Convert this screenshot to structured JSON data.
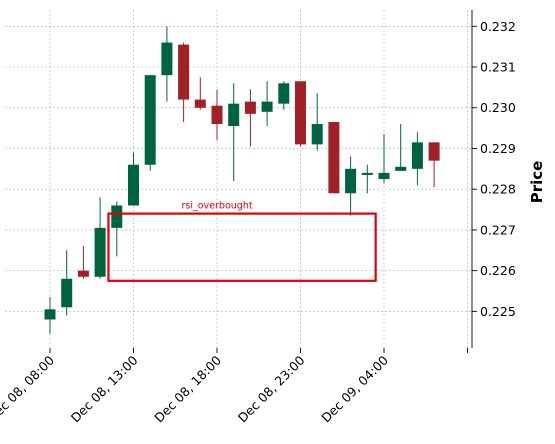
{
  "chart_data": {
    "type": "candlestick",
    "ylabel": "Price",
    "ylim": [
      0.2241,
      0.2324
    ],
    "y_ticks": [
      "0.225",
      "0.226",
      "0.227",
      "0.228",
      "0.229",
      "0.230",
      "0.231",
      "0.232"
    ],
    "x_ticks": [
      "Dec 08, 08:00",
      "Dec 08, 13:00",
      "Dec 08, 18:00",
      "Dec 08, 23:00",
      "Dec 09, 04:00"
    ],
    "grid": true,
    "colors": {
      "up": "#006340",
      "down": "#a02128",
      "annotation": "#e0000a",
      "grid": "#b0b0b0"
    },
    "candles": [
      {
        "time": "Dec 08, 08:00",
        "open": 0.2248,
        "high": 0.22535,
        "low": 0.22445,
        "close": 0.22505
      },
      {
        "time": "Dec 08, 09:00",
        "open": 0.2251,
        "high": 0.2265,
        "low": 0.2249,
        "close": 0.2258
      },
      {
        "time": "Dec 08, 10:00",
        "open": 0.226,
        "high": 0.2266,
        "low": 0.2258,
        "close": 0.22585
      },
      {
        "time": "Dec 08, 11:00",
        "open": 0.22585,
        "high": 0.2278,
        "low": 0.2258,
        "close": 0.22705
      },
      {
        "time": "Dec 08, 12:00",
        "open": 0.22705,
        "high": 0.2277,
        "low": 0.22635,
        "close": 0.2276
      },
      {
        "time": "Dec 08, 13:00",
        "open": 0.2276,
        "high": 0.2289,
        "low": 0.2276,
        "close": 0.2286
      },
      {
        "time": "Dec 08, 14:00",
        "open": 0.2286,
        "high": 0.2308,
        "low": 0.22845,
        "close": 0.2308
      },
      {
        "time": "Dec 08, 15:00",
        "open": 0.2308,
        "high": 0.232,
        "low": 0.23015,
        "close": 0.2316
      },
      {
        "time": "Dec 08, 16:00",
        "open": 0.23155,
        "high": 0.2316,
        "low": 0.22965,
        "close": 0.2302
      },
      {
        "time": "Dec 08, 17:00",
        "open": 0.2302,
        "high": 0.23075,
        "low": 0.22995,
        "close": 0.23
      },
      {
        "time": "Dec 08, 18:00",
        "open": 0.23005,
        "high": 0.23045,
        "low": 0.2292,
        "close": 0.2296
      },
      {
        "time": "Dec 08, 19:00",
        "open": 0.22955,
        "high": 0.2306,
        "low": 0.2282,
        "close": 0.2301
      },
      {
        "time": "Dec 08, 20:00",
        "open": 0.23015,
        "high": 0.23045,
        "low": 0.22905,
        "close": 0.22985
      },
      {
        "time": "Dec 08, 21:00",
        "open": 0.2299,
        "high": 0.23065,
        "low": 0.22955,
        "close": 0.23015
      },
      {
        "time": "Dec 08, 22:00",
        "open": 0.2301,
        "high": 0.23065,
        "low": 0.22995,
        "close": 0.2306
      },
      {
        "time": "Dec 08, 23:00",
        "open": 0.23065,
        "high": 0.23065,
        "low": 0.22905,
        "close": 0.2291
      },
      {
        "time": "Dec 09, 00:00",
        "open": 0.2291,
        "high": 0.23035,
        "low": 0.22895,
        "close": 0.2296
      },
      {
        "time": "Dec 09, 01:00",
        "open": 0.22965,
        "high": 0.22965,
        "low": 0.2279,
        "close": 0.2279
      },
      {
        "time": "Dec 09, 02:00",
        "open": 0.2279,
        "high": 0.2288,
        "low": 0.22735,
        "close": 0.2285
      },
      {
        "time": "Dec 09, 03:00",
        "open": 0.22835,
        "high": 0.2286,
        "low": 0.2279,
        "close": 0.2284
      },
      {
        "time": "Dec 09, 04:00",
        "open": 0.22825,
        "high": 0.22935,
        "low": 0.22815,
        "close": 0.2284
      },
      {
        "time": "Dec 09, 05:00",
        "open": 0.22845,
        "high": 0.2296,
        "low": 0.22845,
        "close": 0.22855
      },
      {
        "time": "Dec 09, 06:00",
        "open": 0.2285,
        "high": 0.2294,
        "low": 0.2281,
        "close": 0.22915
      },
      {
        "time": "Dec 09, 07:00",
        "open": 0.22915,
        "high": 0.22915,
        "low": 0.22805,
        "close": 0.2287
      }
    ],
    "annotations": [
      {
        "text": "rsi_overbought",
        "type": "box",
        "x_start": "Dec 08, 11:30",
        "x_end": "Dec 09, 03:30",
        "y_low": 0.22575,
        "y_high": 0.2274
      }
    ]
  }
}
